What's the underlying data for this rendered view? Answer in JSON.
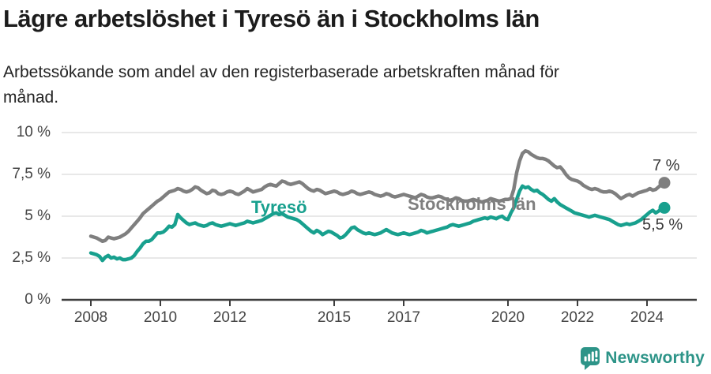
{
  "header": {
    "title": "Lägre arbetslöshet i Tyresö än i Stockholms län",
    "subtitle_line1": "Arbetssökande som andel av den registerbaserade arbetskraften månad för",
    "subtitle_line2": "månad."
  },
  "chart_data": {
    "type": "line",
    "title": "Lägre arbetslöshet i Tyresö än i Stockholms län",
    "subtitle": "Arbetssökande som andel av den registerbaserade arbetskraften månad för månad.",
    "unit": "%",
    "grid": "horizontal",
    "legend": "inline-labels",
    "ylim": [
      0,
      10
    ],
    "x_start_year": 2008,
    "points_per_year": 12,
    "y_ticks": [
      {
        "value": 0,
        "label": "0 %"
      },
      {
        "value": 2.5,
        "label": "2,5 %"
      },
      {
        "value": 5,
        "label": "5 %"
      },
      {
        "value": 7.5,
        "label": "7,5 %"
      },
      {
        "value": 10,
        "label": "10 %"
      }
    ],
    "x_ticks": [
      {
        "year": 2008,
        "label": "2008"
      },
      {
        "year": 2010,
        "label": "2010"
      },
      {
        "year": 2012,
        "label": "2012"
      },
      {
        "year": 2015,
        "label": "2015"
      },
      {
        "year": 2017,
        "label": "2017"
      },
      {
        "year": 2020,
        "label": "2020"
      },
      {
        "year": 2022,
        "label": "2022"
      },
      {
        "year": 2024,
        "label": "2024"
      }
    ],
    "series": [
      {
        "name": "Stockholms län",
        "color": "#7f7f7f",
        "end_label": "7 %",
        "values": [
          3.8,
          3.75,
          3.7,
          3.6,
          3.5,
          3.55,
          3.75,
          3.7,
          3.65,
          3.7,
          3.75,
          3.85,
          3.95,
          4.1,
          4.3,
          4.5,
          4.7,
          4.9,
          5.15,
          5.3,
          5.45,
          5.6,
          5.75,
          5.9,
          6.0,
          6.15,
          6.3,
          6.45,
          6.5,
          6.55,
          6.65,
          6.6,
          6.5,
          6.45,
          6.5,
          6.6,
          6.75,
          6.7,
          6.55,
          6.45,
          6.35,
          6.4,
          6.55,
          6.5,
          6.35,
          6.3,
          6.35,
          6.45,
          6.5,
          6.45,
          6.35,
          6.3,
          6.4,
          6.5,
          6.65,
          6.55,
          6.45,
          6.5,
          6.55,
          6.6,
          6.75,
          6.85,
          6.9,
          6.85,
          6.8,
          6.95,
          7.1,
          7.05,
          6.95,
          6.9,
          6.95,
          7.0,
          7.05,
          6.95,
          6.8,
          6.65,
          6.55,
          6.5,
          6.6,
          6.55,
          6.45,
          6.35,
          6.4,
          6.45,
          6.5,
          6.45,
          6.35,
          6.3,
          6.35,
          6.4,
          6.5,
          6.45,
          6.35,
          6.3,
          6.35,
          6.4,
          6.45,
          6.4,
          6.3,
          6.25,
          6.2,
          6.25,
          6.35,
          6.3,
          6.2,
          6.15,
          6.2,
          6.25,
          6.3,
          6.25,
          6.2,
          6.15,
          6.1,
          6.2,
          6.3,
          6.25,
          6.15,
          6.1,
          6.1,
          6.15,
          6.2,
          6.15,
          6.05,
          6.0,
          5.95,
          6.0,
          6.1,
          6.05,
          5.95,
          5.9,
          5.9,
          5.95,
          6.0,
          5.95,
          5.9,
          5.85,
          5.9,
          5.95,
          6.05,
          6.0,
          5.95,
          5.9,
          5.95,
          6.0,
          6.0,
          6.05,
          6.6,
          7.6,
          8.3,
          8.75,
          8.9,
          8.85,
          8.7,
          8.6,
          8.5,
          8.45,
          8.45,
          8.4,
          8.3,
          8.15,
          8.0,
          7.9,
          7.95,
          7.75,
          7.5,
          7.3,
          7.2,
          7.15,
          7.1,
          7.0,
          6.85,
          6.75,
          6.65,
          6.6,
          6.65,
          6.6,
          6.5,
          6.45,
          6.45,
          6.5,
          6.45,
          6.35,
          6.2,
          6.05,
          6.15,
          6.25,
          6.3,
          6.2,
          6.3,
          6.4,
          6.45,
          6.5,
          6.55,
          6.65,
          6.55,
          6.6,
          6.75,
          6.9,
          7.0
        ]
      },
      {
        "name": "Tyresö",
        "color": "#18a08e",
        "end_label": "5,5 %",
        "values": [
          2.8,
          2.75,
          2.7,
          2.6,
          2.35,
          2.55,
          2.65,
          2.5,
          2.55,
          2.45,
          2.5,
          2.4,
          2.4,
          2.45,
          2.5,
          2.65,
          2.9,
          3.1,
          3.35,
          3.5,
          3.5,
          3.6,
          3.8,
          4.0,
          4.0,
          4.05,
          4.2,
          4.4,
          4.35,
          4.5,
          5.1,
          4.9,
          4.75,
          4.6,
          4.5,
          4.55,
          4.6,
          4.5,
          4.45,
          4.4,
          4.45,
          4.55,
          4.6,
          4.5,
          4.45,
          4.4,
          4.45,
          4.5,
          4.55,
          4.5,
          4.45,
          4.5,
          4.55,
          4.6,
          4.7,
          4.65,
          4.6,
          4.65,
          4.7,
          4.75,
          4.85,
          4.95,
          5.05,
          5.15,
          5.2,
          5.1,
          5.15,
          5.05,
          4.95,
          4.9,
          4.85,
          4.8,
          4.7,
          4.55,
          4.4,
          4.25,
          4.1,
          4.0,
          4.15,
          4.05,
          3.9,
          4.0,
          4.1,
          4.05,
          3.95,
          3.85,
          3.7,
          3.75,
          3.9,
          4.1,
          4.3,
          4.35,
          4.2,
          4.1,
          4.0,
          3.95,
          4.0,
          3.95,
          3.9,
          3.95,
          4.0,
          4.1,
          4.2,
          4.1,
          4.0,
          3.95,
          3.9,
          3.95,
          4.0,
          3.95,
          3.9,
          3.95,
          4.0,
          4.05,
          4.15,
          4.1,
          4.0,
          4.05,
          4.1,
          4.15,
          4.2,
          4.25,
          4.3,
          4.35,
          4.45,
          4.5,
          4.45,
          4.4,
          4.45,
          4.5,
          4.55,
          4.6,
          4.7,
          4.75,
          4.8,
          4.85,
          4.9,
          4.85,
          4.95,
          4.9,
          4.85,
          4.95,
          5.0,
          4.85,
          4.8,
          5.2,
          5.5,
          6.0,
          6.5,
          6.8,
          6.7,
          6.75,
          6.6,
          6.5,
          6.55,
          6.4,
          6.3,
          6.15,
          6.0,
          5.9,
          6.05,
          5.85,
          5.7,
          5.6,
          5.5,
          5.4,
          5.3,
          5.2,
          5.15,
          5.1,
          5.05,
          5.0,
          4.95,
          5.0,
          5.05,
          5.0,
          4.95,
          4.9,
          4.85,
          4.8,
          4.7,
          4.6,
          4.5,
          4.45,
          4.5,
          4.55,
          4.5,
          4.55,
          4.6,
          4.7,
          4.8,
          4.95,
          5.1,
          5.25,
          5.35,
          5.2,
          5.3,
          5.45,
          5.5
        ]
      }
    ]
  },
  "footer": {
    "brand": "Newsworthy",
    "brand_color": "#2d9488"
  }
}
